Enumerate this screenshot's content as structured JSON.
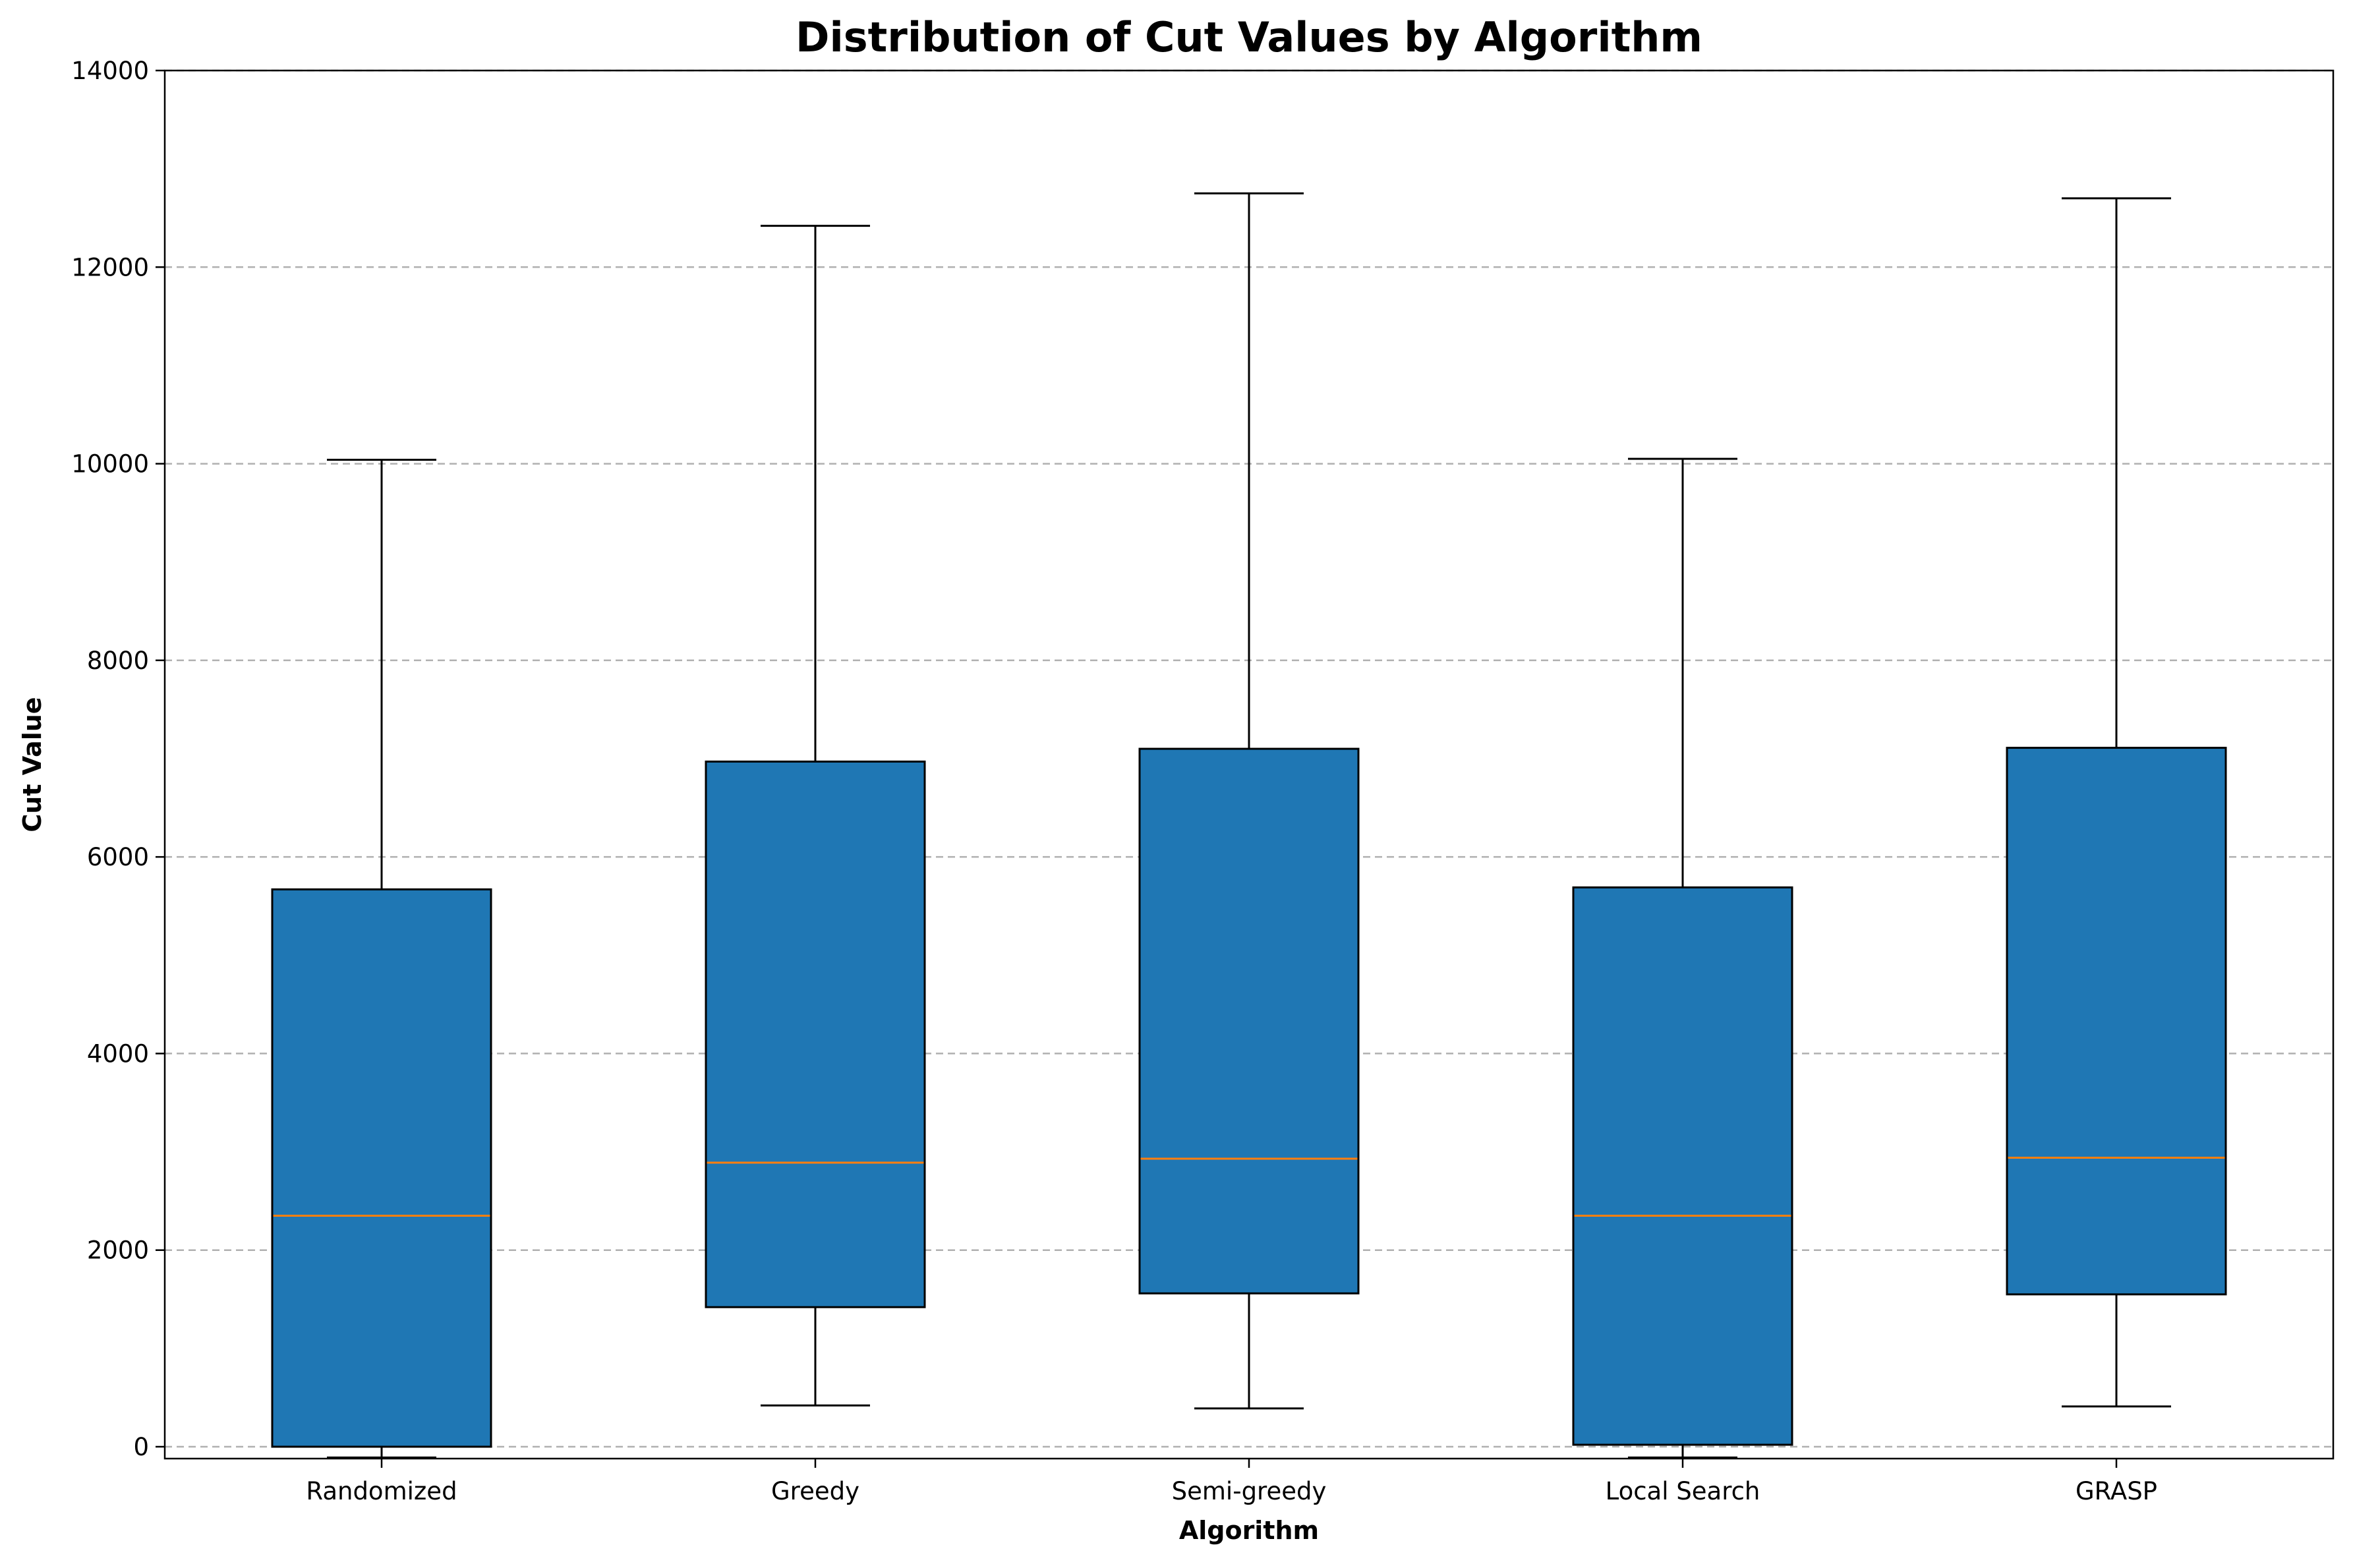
{
  "chart_data": {
    "type": "box",
    "title": "Distribution of Cut Values by Algorithm",
    "xlabel": "Algorithm",
    "ylabel": "Cut Value",
    "ylim": [
      -130,
      14000
    ],
    "yticks": [
      0,
      2000,
      4000,
      6000,
      8000,
      10000,
      12000,
      14000
    ],
    "grid": {
      "axis": "y",
      "style": "dashed"
    },
    "legend": "none",
    "categories": [
      "Randomized",
      "Greedy",
      "Semi-greedy",
      "Local Search",
      "GRASP"
    ],
    "boxes": [
      {
        "category": "Randomized",
        "whisker_low": -110,
        "q1": 0,
        "median": 2350,
        "q3": 5670,
        "whisker_high": 10040
      },
      {
        "category": "Greedy",
        "whisker_low": 420,
        "q1": 1420,
        "median": 2890,
        "q3": 6970,
        "whisker_high": 12420
      },
      {
        "category": "Semi-greedy",
        "whisker_low": 390,
        "q1": 1560,
        "median": 2930,
        "q3": 7100,
        "whisker_high": 12750
      },
      {
        "category": "Local Search",
        "whisker_low": -110,
        "q1": 20,
        "median": 2350,
        "q3": 5690,
        "whisker_high": 10050
      },
      {
        "category": "GRASP",
        "whisker_low": 410,
        "q1": 1550,
        "median": 2940,
        "q3": 7110,
        "whisker_high": 12700
      }
    ],
    "colors": {
      "box_fill": "#1f77b4",
      "box_edge": "#000000",
      "median": "#ff7f0e",
      "grid": "#b0b0b0"
    }
  }
}
